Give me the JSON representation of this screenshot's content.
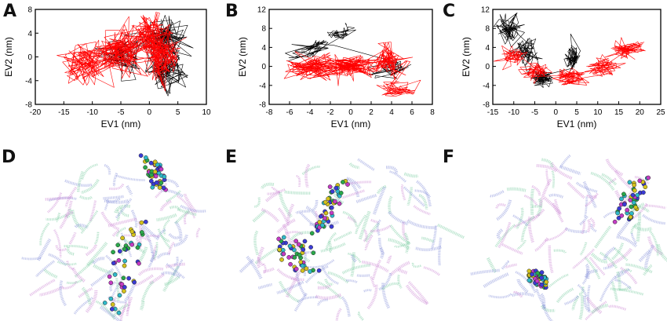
{
  "panel_labels": {
    "A": "A",
    "B": "B",
    "C": "C",
    "D": "D",
    "E": "E",
    "F": "F"
  },
  "colors": {
    "series_black": "#000000",
    "series_red": "#ff0000",
    "ribbon_blue": "#7f8ad6",
    "ribbon_green": "#6fc79a",
    "ribbon_magenta": "#c77fd0",
    "atom_colors": [
      "#3b3bd6",
      "#2aa84a",
      "#d4c21c",
      "#c43bc4",
      "#2fb9c9"
    ]
  },
  "chart_data": [
    {
      "type": "scatter",
      "style": "trajectory-lines",
      "xlabel": "EV1 (nm)",
      "ylabel": "EV2 (nm)",
      "xlim": [
        -20,
        10
      ],
      "ylim": [
        -8,
        8
      ],
      "xticks": [
        -20,
        -15,
        -10,
        -5,
        0,
        5,
        10
      ],
      "yticks": [
        -8,
        -4,
        0,
        4,
        8
      ],
      "series": [
        {
          "color": "black",
          "regions": [
            {
              "cx": -5,
              "cy": 0.5,
              "sx": 1.8,
              "sy": 1.6,
              "n": 70
            },
            {
              "cx": 2.5,
              "cy": 3,
              "sx": 2,
              "sy": 1.8,
              "n": 90
            },
            {
              "cx": 3,
              "cy": -2.5,
              "sx": 1.8,
              "sy": 1.6,
              "n": 90
            }
          ]
        },
        {
          "color": "red",
          "regions": [
            {
              "cx": -11,
              "cy": -1,
              "sx": 2.6,
              "sy": 1.8,
              "n": 110
            },
            {
              "cx": -5,
              "cy": 1,
              "sx": 2.2,
              "sy": 2,
              "n": 120
            },
            {
              "cx": 0,
              "cy": 3,
              "sx": 1.8,
              "sy": 2,
              "n": 110
            },
            {
              "cx": 2.5,
              "cy": 0,
              "sx": 1.6,
              "sy": 2.4,
              "n": 110
            }
          ]
        }
      ]
    },
    {
      "type": "scatter",
      "style": "trajectory-lines",
      "xlabel": "EV1 (nm)",
      "ylabel": "EV2 (nm)",
      "xlim": [
        -8,
        8
      ],
      "ylim": [
        -8,
        12
      ],
      "xticks": [
        -8,
        -6,
        -4,
        -2,
        0,
        2,
        4,
        6,
        8
      ],
      "yticks": [
        -8,
        -4,
        0,
        4,
        8,
        12
      ],
      "series": [
        {
          "color": "black",
          "regions": [
            {
              "cx": -1,
              "cy": 7,
              "sx": 0.8,
              "sy": 0.8,
              "n": 30,
              "tilt": 0.6
            },
            {
              "cx": -3.5,
              "cy": 4,
              "sx": 1.2,
              "sy": 0.8,
              "n": 40,
              "tilt": 0.5
            },
            {
              "cx": 4,
              "cy": -0.5,
              "sx": 1,
              "sy": 1,
              "n": 40
            }
          ]
        },
        {
          "color": "red",
          "regions": [
            {
              "cx": -4,
              "cy": 0,
              "sx": 1.3,
              "sy": 1.3,
              "n": 110
            },
            {
              "cx": 0,
              "cy": 0,
              "sx": 1.4,
              "sy": 1.2,
              "n": 120
            },
            {
              "cx": 3.5,
              "cy": 1,
              "sx": 0.9,
              "sy": 1.6,
              "n": 90
            },
            {
              "cx": 4.5,
              "cy": -5,
              "sx": 0.9,
              "sy": 1,
              "n": 50
            }
          ]
        }
      ]
    },
    {
      "type": "scatter",
      "style": "trajectory-lines",
      "xlabel": "EV1 (nm)",
      "ylabel": "EV2 (nm)",
      "xlim": [
        -15,
        25
      ],
      "ylim": [
        -8,
        12
      ],
      "xticks": [
        -15,
        -10,
        -5,
        0,
        5,
        10,
        15,
        20,
        25
      ],
      "yticks": [
        -8,
        -4,
        0,
        4,
        8,
        12
      ],
      "series": [
        {
          "color": "black",
          "regions": [
            {
              "cx": -11,
              "cy": 8,
              "sx": 1.6,
              "sy": 1.6,
              "n": 70
            },
            {
              "cx": -7,
              "cy": 3,
              "sx": 1.5,
              "sy": 1.4,
              "n": 60
            },
            {
              "cx": -3,
              "cy": -2.5,
              "sx": 1.6,
              "sy": 0.9,
              "n": 60
            },
            {
              "cx": 4,
              "cy": 2,
              "sx": 0.9,
              "sy": 1.4,
              "n": 60
            }
          ]
        },
        {
          "color": "red",
          "regions": [
            {
              "cx": -10,
              "cy": 2,
              "sx": 1.4,
              "sy": 1,
              "n": 60
            },
            {
              "cx": -5,
              "cy": -1,
              "sx": 1.8,
              "sy": 0.9,
              "n": 60
            },
            {
              "cx": 4,
              "cy": -2.2,
              "sx": 2.2,
              "sy": 0.8,
              "n": 80
            },
            {
              "cx": 11,
              "cy": 0,
              "sx": 2,
              "sy": 1,
              "n": 60
            },
            {
              "cx": 17,
              "cy": 3.5,
              "sx": 2,
              "sy": 1,
              "n": 70
            }
          ]
        }
      ]
    }
  ]
}
